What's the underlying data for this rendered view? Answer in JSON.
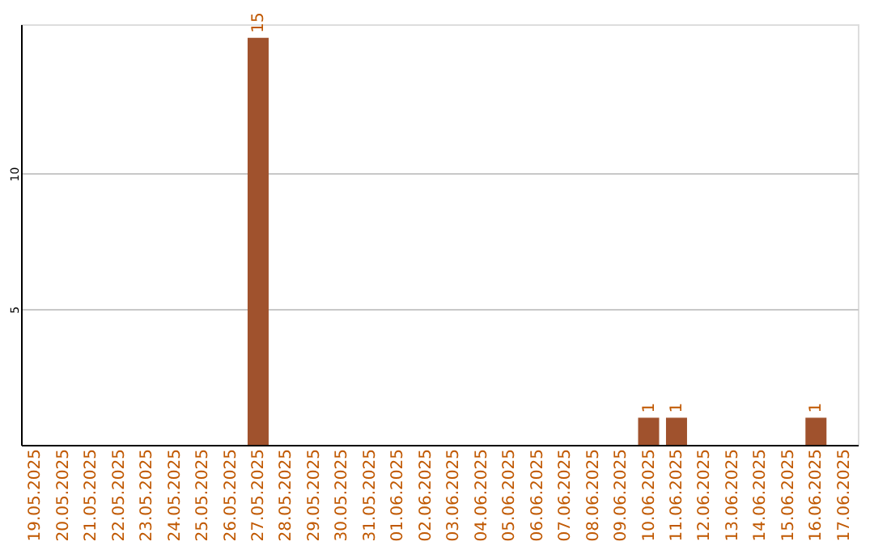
{
  "chart_data": {
    "type": "bar",
    "categories": [
      "19.05.2025",
      "20.05.2025",
      "21.05.2025",
      "22.05.2025",
      "23.05.2025",
      "24.05.2025",
      "25.05.2025",
      "26.05.2025",
      "27.05.2025",
      "28.05.2025",
      "29.05.2025",
      "30.05.2025",
      "31.05.2025",
      "01.06.2025",
      "02.06.2025",
      "03.06.2025",
      "04.06.2025",
      "05.06.2025",
      "06.06.2025",
      "07.06.2025",
      "08.06.2025",
      "09.06.2025",
      "10.06.2025",
      "11.06.2025",
      "12.06.2025",
      "13.06.2025",
      "14.06.2025",
      "15.06.2025",
      "16.06.2025",
      "17.06.2025"
    ],
    "values": [
      0,
      0,
      0,
      0,
      0,
      0,
      0,
      0,
      15,
      0,
      0,
      0,
      0,
      0,
      0,
      0,
      0,
      0,
      0,
      0,
      0,
      0,
      1,
      1,
      0,
      0,
      0,
      0,
      1,
      0
    ],
    "value_labels": [
      null,
      null,
      null,
      null,
      null,
      null,
      null,
      null,
      "15",
      null,
      null,
      null,
      null,
      null,
      null,
      null,
      null,
      null,
      null,
      null,
      null,
      null,
      "1",
      "1",
      null,
      null,
      null,
      null,
      "1",
      null
    ],
    "color": "#a0522d",
    "ylim": [
      0,
      15.5
    ],
    "yticks": [
      5,
      10
    ],
    "grid": "y"
  }
}
